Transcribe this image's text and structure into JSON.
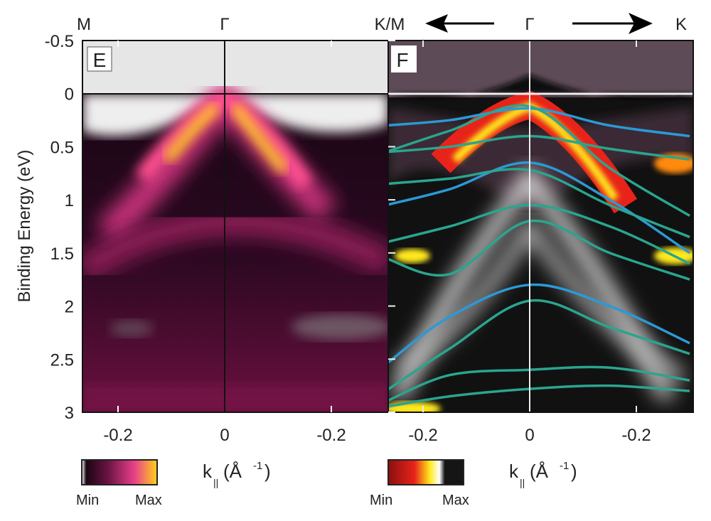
{
  "figure": {
    "ylabel": "Binding Energy (eV)",
    "xlabel_main": "k",
    "xlabel_sub": "||",
    "xlabel_unit": "(Å",
    "xlabel_exp": "-1",
    "xlabel_close": ")",
    "top_labels": [
      "M",
      "Γ",
      "K/M",
      "Γ",
      "K"
    ],
    "arrow_left": "left-arrow-icon",
    "arrow_right": "right-arrow-icon"
  },
  "chart_data": [
    {
      "type": "heatmap",
      "panel_label": "E",
      "ylabel": "Binding Energy (eV)",
      "ylim": [
        -0.5,
        3
      ],
      "yticks": [
        "-0.5",
        "0",
        "0.5",
        "1",
        "1.5",
        "2",
        "2.5",
        "3"
      ],
      "xlim": [
        -0.27,
        0.3
      ],
      "xticks": [
        "-0.2",
        "0",
        "-0.2"
      ],
      "fermi_level": 0,
      "colormap": {
        "min_label": "Min",
        "max_label": "Max",
        "colors": [
          "#ffffff",
          "#1a0612",
          "#6b1444",
          "#e8408a",
          "#ffd21a"
        ]
      }
    },
    {
      "type": "heatmap",
      "panel_label": "F",
      "ylim": [
        -0.5,
        3
      ],
      "xlim": [
        -0.27,
        0.3
      ],
      "xticks": [
        "-0.2",
        "0",
        "-0.2"
      ],
      "fermi_level": 0,
      "colormap": {
        "min_label": "Min",
        "max_label": "Max",
        "colors": [
          "#8a1010",
          "#e8231a",
          "#ffe81a",
          "#ffffff",
          "#151515"
        ]
      },
      "band_k": [
        -0.27,
        -0.15,
        0,
        0.15,
        0.3
      ],
      "series": [
        {
          "color": "#2a9ad6",
          "values": [
            0.3,
            0.25,
            0.14,
            0.3,
            0.4
          ]
        },
        {
          "color": "#2aa58e",
          "values": [
            0.55,
            0.35,
            0.12,
            0.7,
            1.15
          ]
        },
        {
          "color": "#2aa58e",
          "values": [
            0.55,
            0.5,
            0.4,
            0.52,
            0.62
          ]
        },
        {
          "color": "#2a9ad6",
          "values": [
            1.05,
            0.9,
            0.65,
            1.0,
            1.5
          ]
        },
        {
          "color": "#2aa58e",
          "values": [
            0.85,
            0.8,
            0.72,
            1.05,
            1.35
          ]
        },
        {
          "color": "#2aa58e",
          "values": [
            1.4,
            1.25,
            1.05,
            1.25,
            1.6
          ]
        },
        {
          "color": "#2aa58e",
          "values": [
            1.55,
            1.7,
            1.2,
            1.5,
            1.75
          ]
        },
        {
          "color": "#2a9ad6",
          "values": [
            2.55,
            2.1,
            1.8,
            2.0,
            2.35
          ]
        },
        {
          "color": "#2aa58e",
          "values": [
            2.8,
            2.4,
            1.95,
            2.2,
            2.45
          ]
        },
        {
          "color": "#2aa58e",
          "values": [
            2.9,
            2.65,
            2.6,
            2.58,
            2.7
          ]
        },
        {
          "color": "#2aa58e",
          "values": [
            2.95,
            2.85,
            2.78,
            2.75,
            2.8
          ]
        }
      ]
    }
  ]
}
